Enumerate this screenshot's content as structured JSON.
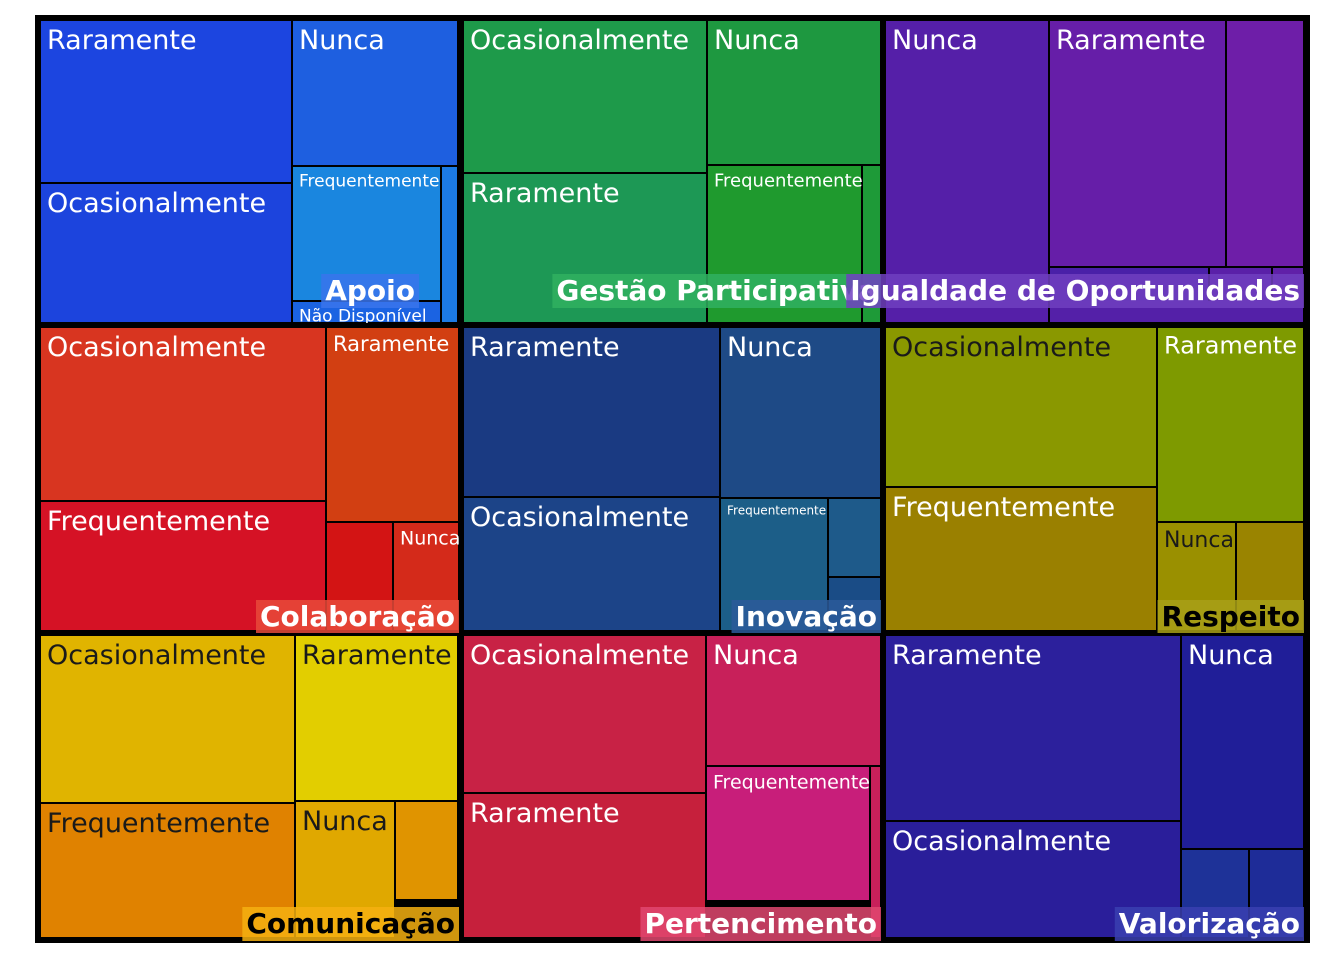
{
  "chart_data": {
    "type": "treemap",
    "groups": [
      {
        "name": "Apoio",
        "color": "#1E4FE0",
        "label_bg": "#3A74EC",
        "label_color": "#FFFFFF",
        "children": [
          {
            "name": "Raramente",
            "label": "Raramente",
            "color": "#1C45E0"
          },
          {
            "name": "Ocasionalmente",
            "label": "Ocasionalmente",
            "color": "#1C44DD"
          },
          {
            "name": "Nunca",
            "label": "Nunca",
            "color": "#1E5FE0"
          },
          {
            "name": "Frequentemente",
            "label": "Frequentemente",
            "color": "#1A86DF"
          },
          {
            "name": "Não Disponível",
            "label": "Não Disponível",
            "color": "#1B63E2"
          },
          {
            "name": "—",
            "label": "",
            "color": "#1C7AE4"
          }
        ]
      },
      {
        "name": "Gestão Participativa",
        "color": "#1E9A4A",
        "label_bg": "#30B060",
        "label_color": "#FFFFFF",
        "children": [
          {
            "name": "Ocasionalmente",
            "label": "Ocasionalmente",
            "color": "#1E9A4A"
          },
          {
            "name": "Raramente",
            "label": "Raramente",
            "color": "#1D9855"
          },
          {
            "name": "Nunca",
            "label": "Nunca",
            "color": "#1E9840"
          },
          {
            "name": "Frequentemente",
            "label": "Frequentemente",
            "color": "#1F9A2E"
          },
          {
            "name": "—",
            "label": "",
            "color": "#1E9A38"
          }
        ]
      },
      {
        "name": "Igualdade de Oportunidades",
        "color": "#551FA8",
        "label_bg": "#7040C0",
        "label_color": "#FFFFFF",
        "children": [
          {
            "name": "Nunca",
            "label": "Nunca",
            "color": "#551FA8"
          },
          {
            "name": "Raramente",
            "label": "Raramente",
            "color": "#661EA8"
          },
          {
            "name": "—",
            "label": "",
            "color": "#6E1EA8"
          },
          {
            "name": "—",
            "label": "",
            "color": "#4A20A8"
          },
          {
            "name": "—",
            "label": "",
            "color": "#5A20A8"
          },
          {
            "name": "—",
            "label": "",
            "color": "#6020A8"
          },
          {
            "name": "—",
            "label": "",
            "color": "#5420A8"
          }
        ]
      },
      {
        "name": "Colaboração",
        "color": "#D8301E",
        "label_bg": "#E84A3A",
        "label_color": "#FFFFFF",
        "children": [
          {
            "name": "Ocasionalmente",
            "label": "Ocasionalmente",
            "color": "#D83520"
          },
          {
            "name": "Frequentemente",
            "label": "Frequentemente",
            "color": "#D51225"
          },
          {
            "name": "Raramente",
            "label": "Raramente",
            "color": "#D23F12"
          },
          {
            "name": "—",
            "label": "",
            "color": "#D31414"
          },
          {
            "name": "Nunca",
            "label": "Nunca",
            "color": "#D42A1A"
          }
        ]
      },
      {
        "name": "Inovação",
        "color": "#1A3C84",
        "label_bg": "#2C5A9A",
        "label_color": "#FFFFFF",
        "children": [
          {
            "name": "Raramente",
            "label": "Raramente",
            "color": "#1A3A82"
          },
          {
            "name": "Ocasionalmente",
            "label": "Ocasionalmente",
            "color": "#1C4488"
          },
          {
            "name": "Nunca",
            "label": "Nunca",
            "color": "#1E4A86"
          },
          {
            "name": "Frequentemente",
            "label": "Frequentemente",
            "color": "#1C5E88"
          },
          {
            "name": "—",
            "label": "",
            "color": "#1E5A8A"
          },
          {
            "name": "—",
            "label": "",
            "color": "#1A4C86"
          }
        ]
      },
      {
        "name": "Respeito",
        "color": "#8A9800",
        "label_bg": "#A8A018",
        "label_color": "#000000",
        "children": [
          {
            "name": "Ocasionalmente",
            "label": "Ocasionalmente",
            "color": "#8A9800"
          },
          {
            "name": "Frequentemente",
            "label": "Frequentemente",
            "color": "#9A8000"
          },
          {
            "name": "Raramente",
            "label": "Raramente",
            "color": "#7E9A00"
          },
          {
            "name": "Nunca",
            "label": "Nunca",
            "color": "#9A9000"
          },
          {
            "name": "—",
            "label": "",
            "color": "#9A8400"
          }
        ]
      },
      {
        "name": "Comunicação",
        "color": "#E0B000",
        "label_bg": "#F5B010",
        "label_color": "#000000",
        "children": [
          {
            "name": "Ocasionalmente",
            "label": "Ocasionalmente",
            "color": "#E0B400"
          },
          {
            "name": "Frequentemente",
            "label": "Frequentemente",
            "color": "#E08200"
          },
          {
            "name": "Raramente",
            "label": "Raramente",
            "color": "#E2CE00"
          },
          {
            "name": "Nunca",
            "label": "Nunca",
            "color": "#E0A800"
          },
          {
            "name": "—",
            "label": "",
            "color": "#E09400"
          }
        ]
      },
      {
        "name": "Pertencimento",
        "color": "#C82040",
        "label_bg": "#E04870",
        "label_color": "#FFFFFF",
        "children": [
          {
            "name": "Ocasionalmente",
            "label": "Ocasionalmente",
            "color": "#C82245"
          },
          {
            "name": "Raramente",
            "label": "Raramente",
            "color": "#C6203C"
          },
          {
            "name": "Nunca",
            "label": "Nunca",
            "color": "#C8205A"
          },
          {
            "name": "Frequentemente",
            "label": "Frequentemente",
            "color": "#C81E7A"
          },
          {
            "name": "—",
            "label": "",
            "color": "#C8205A"
          }
        ]
      },
      {
        "name": "Valorização",
        "color": "#2A209C",
        "label_bg": "#3A40B0",
        "label_color": "#FFFFFF",
        "children": [
          {
            "name": "Raramente",
            "label": "Raramente",
            "color": "#2C209C"
          },
          {
            "name": "Ocasionalmente",
            "label": "Ocasionalmente",
            "color": "#2A1E9A"
          },
          {
            "name": "Nunca",
            "label": "Nunca",
            "color": "#201E98"
          },
          {
            "name": "—",
            "label": "",
            "color": "#1E3298"
          },
          {
            "name": "—",
            "label": "",
            "color": "#1E2C98"
          }
        ]
      }
    ]
  }
}
